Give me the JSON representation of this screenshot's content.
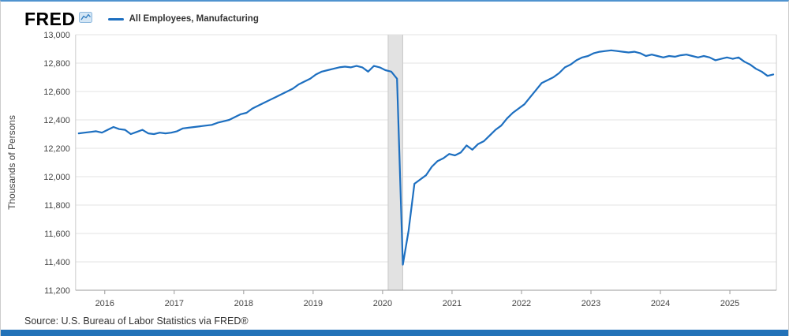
{
  "header": {
    "logo_text": "FRED",
    "logo_icon": "line-chart-icon",
    "legend_label": "All Employees, Manufacturing"
  },
  "footer": {
    "source": "Source: U.S. Bureau of Labor Statistics via FRED®"
  },
  "colors": {
    "line": "#1d6fc0",
    "grid": "#e3e3e3",
    "recession_band": "#e2e2e2",
    "recession_edge": "#c9c9c9",
    "axis_line": "#999999",
    "plot_border": "#cccccc",
    "tick_text": "#444444",
    "top_border": "#4f93cf",
    "bottom_bar": "#2272b8"
  },
  "chart_data": {
    "type": "line",
    "title": "All Employees, Manufacturing",
    "ylabel": "Thousands of Persons",
    "xlabel": "",
    "x_range": [
      2015.58,
      2025.67
    ],
    "ylim": [
      11200,
      13000
    ],
    "y_tick_step": 200,
    "x_tick_labels": [
      "2016",
      "2017",
      "2018",
      "2019",
      "2020",
      "2021",
      "2022",
      "2023",
      "2024",
      "2025"
    ],
    "grid": "horizontal",
    "legend_position": "top-left",
    "recession_bands": [
      {
        "start": 2020.08,
        "end": 2020.29
      }
    ],
    "frequency": "monthly",
    "start_date": "2015-08",
    "series": [
      {
        "name": "All Employees, Manufacturing",
        "values": [
          12305,
          12310,
          12315,
          12320,
          12310,
          12330,
          12350,
          12335,
          12330,
          12300,
          12315,
          12330,
          12305,
          12300,
          12310,
          12305,
          12310,
          12320,
          12340,
          12345,
          12350,
          12355,
          12360,
          12365,
          12380,
          12390,
          12400,
          12420,
          12440,
          12450,
          12480,
          12500,
          12520,
          12540,
          12560,
          12580,
          12600,
          12620,
          12650,
          12670,
          12690,
          12720,
          12740,
          12750,
          12760,
          12770,
          12775,
          12770,
          12780,
          12770,
          12740,
          12780,
          12770,
          12750,
          12740,
          12690,
          11380,
          11620,
          11950,
          11980,
          12010,
          12070,
          12110,
          12130,
          12160,
          12150,
          12170,
          12220,
          12190,
          12230,
          12250,
          12290,
          12330,
          12360,
          12410,
          12450,
          12480,
          12510,
          12560,
          12610,
          12660,
          12680,
          12700,
          12730,
          12770,
          12790,
          12820,
          12840,
          12850,
          12870,
          12880,
          12885,
          12890,
          12885,
          12880,
          12875,
          12880,
          12870,
          12850,
          12860,
          12850,
          12840,
          12850,
          12845,
          12855,
          12860,
          12850,
          12840,
          12850,
          12840,
          12820,
          12830,
          12840,
          12830,
          12840,
          12810,
          12790,
          12760,
          12740,
          12710,
          12720
        ]
      }
    ]
  }
}
